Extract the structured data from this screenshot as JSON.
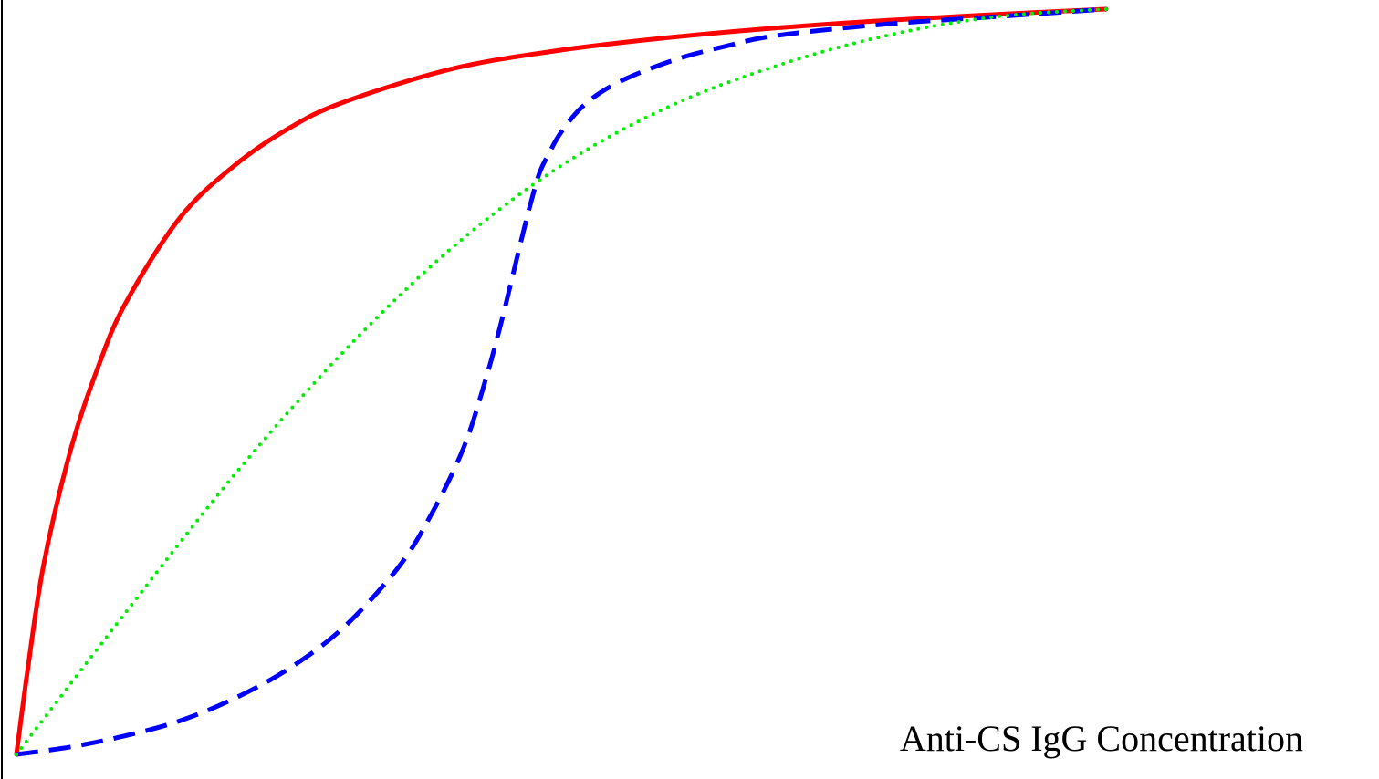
{
  "chart_data": {
    "type": "line",
    "title": "",
    "xlabel": "Anti-CS IgG Concentration",
    "ylabel": "",
    "xlim": [
      0,
      1
    ],
    "ylim": [
      0,
      1
    ],
    "grid": false,
    "ticks": false,
    "series": [
      {
        "color": "#ff0000",
        "style": "solid",
        "x": [
          0,
          0.01,
          0.025,
          0.05,
          0.075,
          0.1,
          0.15,
          0.2,
          0.25,
          0.3,
          0.4,
          0.5,
          0.6,
          0.7,
          0.8,
          0.9,
          1.0
        ],
        "values": [
          0,
          0.11,
          0.255,
          0.41,
          0.52,
          0.605,
          0.72,
          0.79,
          0.84,
          0.875,
          0.92,
          0.945,
          0.962,
          0.975,
          0.985,
          0.993,
          1.0
        ]
      },
      {
        "color": "#0000ff",
        "style": "dashed",
        "x": [
          0,
          0.05,
          0.1,
          0.15,
          0.2,
          0.25,
          0.3,
          0.35,
          0.38,
          0.41,
          0.43,
          0.445,
          0.455,
          0.465,
          0.472,
          0.48,
          0.49,
          0.5,
          0.52,
          0.55,
          0.6,
          0.65,
          0.7,
          0.8,
          0.9,
          1.0
        ],
        "values": [
          0,
          0.01,
          0.025,
          0.045,
          0.075,
          0.115,
          0.17,
          0.25,
          0.32,
          0.41,
          0.5,
          0.58,
          0.64,
          0.7,
          0.74,
          0.78,
          0.81,
          0.835,
          0.87,
          0.9,
          0.93,
          0.95,
          0.965,
          0.98,
          0.99,
          1.0
        ]
      },
      {
        "color": "#00ee00",
        "style": "dotted",
        "x": [
          0,
          0.1,
          0.2,
          0.3,
          0.4,
          0.5,
          0.6,
          0.7,
          0.8,
          0.9,
          1.0
        ],
        "values": [
          0,
          0.19,
          0.375,
          0.54,
          0.68,
          0.79,
          0.87,
          0.925,
          0.965,
          0.99,
          1.0
        ]
      }
    ]
  }
}
